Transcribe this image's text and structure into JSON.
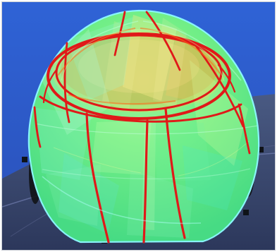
{
  "scene": {
    "description_key": "dome-render",
    "colors": {
      "background_top": "#2f63d6",
      "background_bottom": "#2a4fb7",
      "floor": "#34405f",
      "floor_dark": "#1f2536",
      "dome_fill": "#5cf08a",
      "dome_light": "#92f7b2",
      "dome_teal": "#61f1d4",
      "dome_yellow": "#c7c94a",
      "dome_orange": "#d38a2e",
      "red_rib": "#e01919",
      "outline": "#8cf9ff",
      "support": "#0f1318"
    }
  }
}
